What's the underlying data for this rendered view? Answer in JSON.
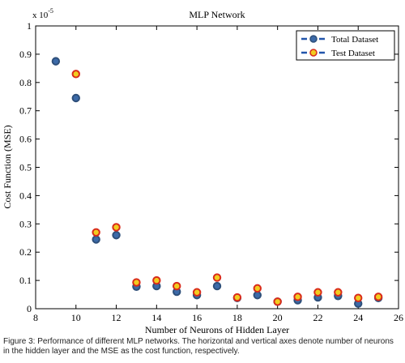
{
  "chart_data": {
    "type": "scatter",
    "title": "MLP Network",
    "xlabel": "Number of Neurons of Hidden Layer",
    "ylabel": "Cost Function (MSE)",
    "y_multiplier": "x 10",
    "y_multiplier_exponent": "-5",
    "xlim": [
      8,
      26
    ],
    "ylim": [
      0,
      1
    ],
    "x_ticks": [
      "8",
      "10",
      "12",
      "14",
      "16",
      "18",
      "20",
      "22",
      "24",
      "26"
    ],
    "y_ticks": [
      "0",
      "0.1",
      "0.2",
      "0.3",
      "0.4",
      "0.5",
      "0.6",
      "0.7",
      "0.8",
      "0.9",
      "1"
    ],
    "grid": false,
    "legend_position": "top-right",
    "series": [
      {
        "name": "Total Dataset",
        "x": [
          9,
          10,
          11,
          12,
          13,
          14,
          15,
          16,
          17,
          18,
          19,
          20,
          21,
          22,
          23,
          24,
          25
        ],
        "y": [
          0.875,
          0.745,
          0.245,
          0.26,
          0.078,
          0.08,
          0.06,
          0.048,
          0.08,
          0.038,
          0.048,
          0.025,
          0.03,
          0.04,
          0.045,
          0.018,
          0.038
        ]
      },
      {
        "name": "Test Dataset",
        "x": [
          10,
          11,
          12,
          13,
          14,
          15,
          16,
          17,
          18,
          19,
          20,
          21,
          22,
          23,
          24,
          25
        ],
        "y": [
          0.83,
          0.27,
          0.288,
          0.093,
          0.1,
          0.08,
          0.058,
          0.11,
          0.04,
          0.072,
          0.025,
          0.042,
          0.058,
          0.058,
          0.038,
          0.042
        ]
      }
    ],
    "colors": {
      "total_fill": "#3c6aa8",
      "total_edge": "#2e4f7a",
      "test_fill": "#f2cc1f",
      "test_edge": "#d92b1b",
      "legend_line": "#2255aa",
      "axis": "#000000"
    }
  },
  "caption": "Figure 3: Performance of different MLP networks. The horizontal and vertical axes denote number of neurons in the hidden layer and the MSE as the cost function, respectively."
}
